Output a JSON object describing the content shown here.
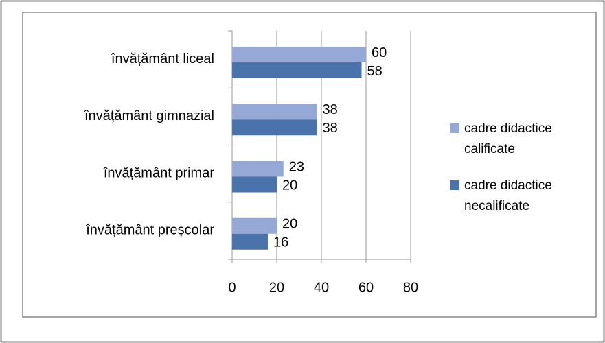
{
  "chart_data": {
    "type": "bar",
    "orientation": "horizontal",
    "categories": [
      "învățământ liceal",
      "învățământ gimnazial",
      "învățământ primar",
      "învățământ preșcolar"
    ],
    "series": [
      {
        "name": "cadre didactice calificate",
        "color": "#95a8d6",
        "values": [
          60,
          38,
          23,
          20
        ]
      },
      {
        "name": "cadre didactice necalificate",
        "color": "#4a72ab",
        "values": [
          58,
          38,
          20,
          16
        ]
      }
    ],
    "xlim": [
      0,
      80
    ],
    "xticks": [
      0,
      20,
      40,
      60,
      80
    ],
    "grid": true,
    "legend": "right"
  }
}
